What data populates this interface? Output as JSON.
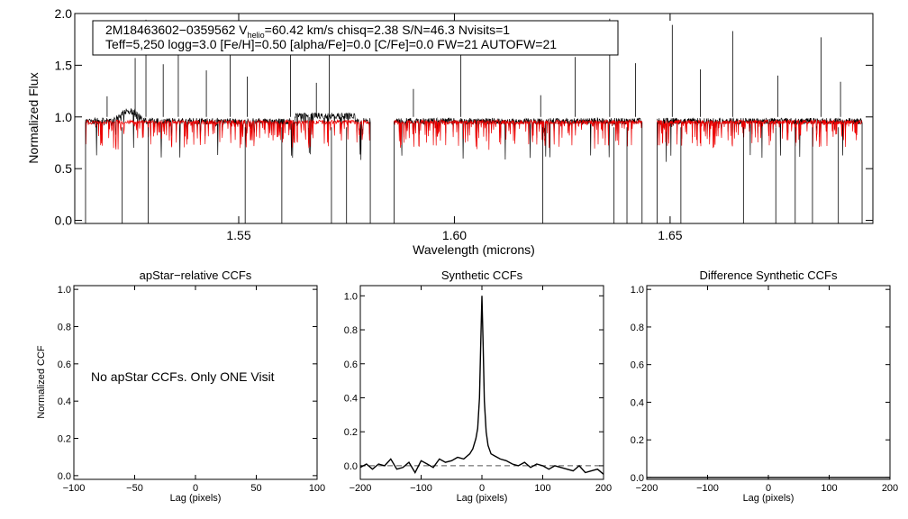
{
  "chart_data": [
    {
      "type": "line",
      "panel": "spectrum",
      "ylabel": "Normalized Flux",
      "xlabel": "Wavelength (microns)",
      "xlim": [
        1.512,
        1.697
      ],
      "ylim": [
        -0.03,
        2.0
      ],
      "x_ticks": [
        1.55,
        1.6,
        1.65
      ],
      "x_tick_labels": [
        "1.55",
        "1.60",
        "1.65"
      ],
      "y_ticks": [
        0.0,
        0.5,
        1.0,
        1.5,
        2.0
      ],
      "y_tick_labels": [
        "0.0",
        "0.5",
        "1.0",
        "1.5",
        "2.0"
      ],
      "chips": [
        [
          1.5145,
          1.5805
        ],
        [
          1.586,
          1.6435
        ],
        [
          1.647,
          1.6945
        ]
      ],
      "series": [
        {
          "name": "observed",
          "color": "#000000"
        },
        {
          "name": "synthetic",
          "color": "#ee0000"
        }
      ],
      "legend": {
        "line1_a": "2M18463602−0359562  V",
        "line1_sub": "helio",
        "line1_b": "=60.42 km/s  chisq=2.38  S/N=46.3  Nvisits=1",
        "line2": "Teff=5,250 logg=3.0 [Fe/H]=0.50 [alpha/Fe]=0.0 [C/Fe]=0.0 FW=21 AUTOFW=21"
      }
    },
    {
      "type": "line",
      "panel": "apstar",
      "title": "apStar−relative CCFs",
      "xlabel": "Lag (pixels)",
      "ylabel": "Normalized CCF",
      "xlim": [
        -100,
        100
      ],
      "ylim": [
        -0.02,
        1.02
      ],
      "x_ticks": [
        -100,
        -50,
        0,
        50,
        100
      ],
      "x_tick_labels": [
        "−100",
        "−50",
        "0",
        "50",
        "100"
      ],
      "y_ticks": [
        0.0,
        0.2,
        0.4,
        0.6,
        0.8,
        1.0
      ],
      "y_tick_labels": [
        "0.0",
        "0.2",
        "0.4",
        "0.6",
        "0.8",
        "1.0"
      ],
      "annotation": "No apStar CCFs.  Only ONE Visit"
    },
    {
      "type": "line",
      "panel": "synthetic",
      "title": "Synthetic CCFs",
      "xlabel": "Lag (pixels)",
      "xlim": [
        -200,
        200
      ],
      "ylim": [
        -0.08,
        1.06
      ],
      "x_ticks": [
        -200,
        -100,
        0,
        100,
        200
      ],
      "x_tick_labels": [
        "−200",
        "−100",
        "0",
        "100",
        "200"
      ],
      "y_ticks": [
        0.0,
        0.2,
        0.4,
        0.6,
        0.8,
        1.0
      ],
      "y_tick_labels": [
        "0.0",
        "0.2",
        "0.4",
        "0.6",
        "0.8",
        "1.0"
      ],
      "baseline": 0.0,
      "x": [
        -200,
        -190,
        -180,
        -170,
        -160,
        -150,
        -140,
        -130,
        -120,
        -110,
        -100,
        -90,
        -80,
        -70,
        -60,
        -50,
        -40,
        -30,
        -20,
        -15,
        -10,
        -7,
        -4,
        -2,
        0,
        2,
        4,
        7,
        10,
        15,
        20,
        30,
        40,
        50,
        60,
        70,
        80,
        90,
        100,
        110,
        120,
        130,
        140,
        150,
        160,
        170,
        180,
        190,
        200
      ],
      "y": [
        -0.01,
        0.01,
        -0.02,
        0.01,
        0.0,
        0.04,
        -0.02,
        -0.01,
        0.02,
        -0.04,
        0.03,
        0.01,
        -0.01,
        0.04,
        0.02,
        0.03,
        0.05,
        0.04,
        0.07,
        0.1,
        0.16,
        0.22,
        0.4,
        0.7,
        1.0,
        0.7,
        0.38,
        0.2,
        0.12,
        0.07,
        0.06,
        0.04,
        0.03,
        0.01,
        0.0,
        0.02,
        -0.01,
        0.01,
        0.0,
        -0.02,
        0.0,
        -0.01,
        -0.02,
        -0.03,
        0.0,
        -0.04,
        -0.03,
        -0.02,
        -0.05
      ]
    },
    {
      "type": "line",
      "panel": "difference",
      "title": "Difference Synthetic CCFs",
      "xlabel": "Lag (pixels)",
      "xlim": [
        -200,
        200
      ],
      "ylim": [
        -0.01,
        1.02
      ],
      "x_ticks": [
        -200,
        -100,
        0,
        100,
        200
      ],
      "x_tick_labels": [
        "−200",
        "−100",
        "0",
        "100",
        "200"
      ],
      "y_ticks": [
        0.0,
        0.2,
        0.4,
        0.6,
        0.8,
        1.0
      ],
      "y_tick_labels": [
        "0.0",
        "0.2",
        "0.4",
        "0.6",
        "0.8",
        "1.0"
      ],
      "x": [
        -200,
        200
      ],
      "y": [
        0.0,
        0.0
      ]
    }
  ]
}
